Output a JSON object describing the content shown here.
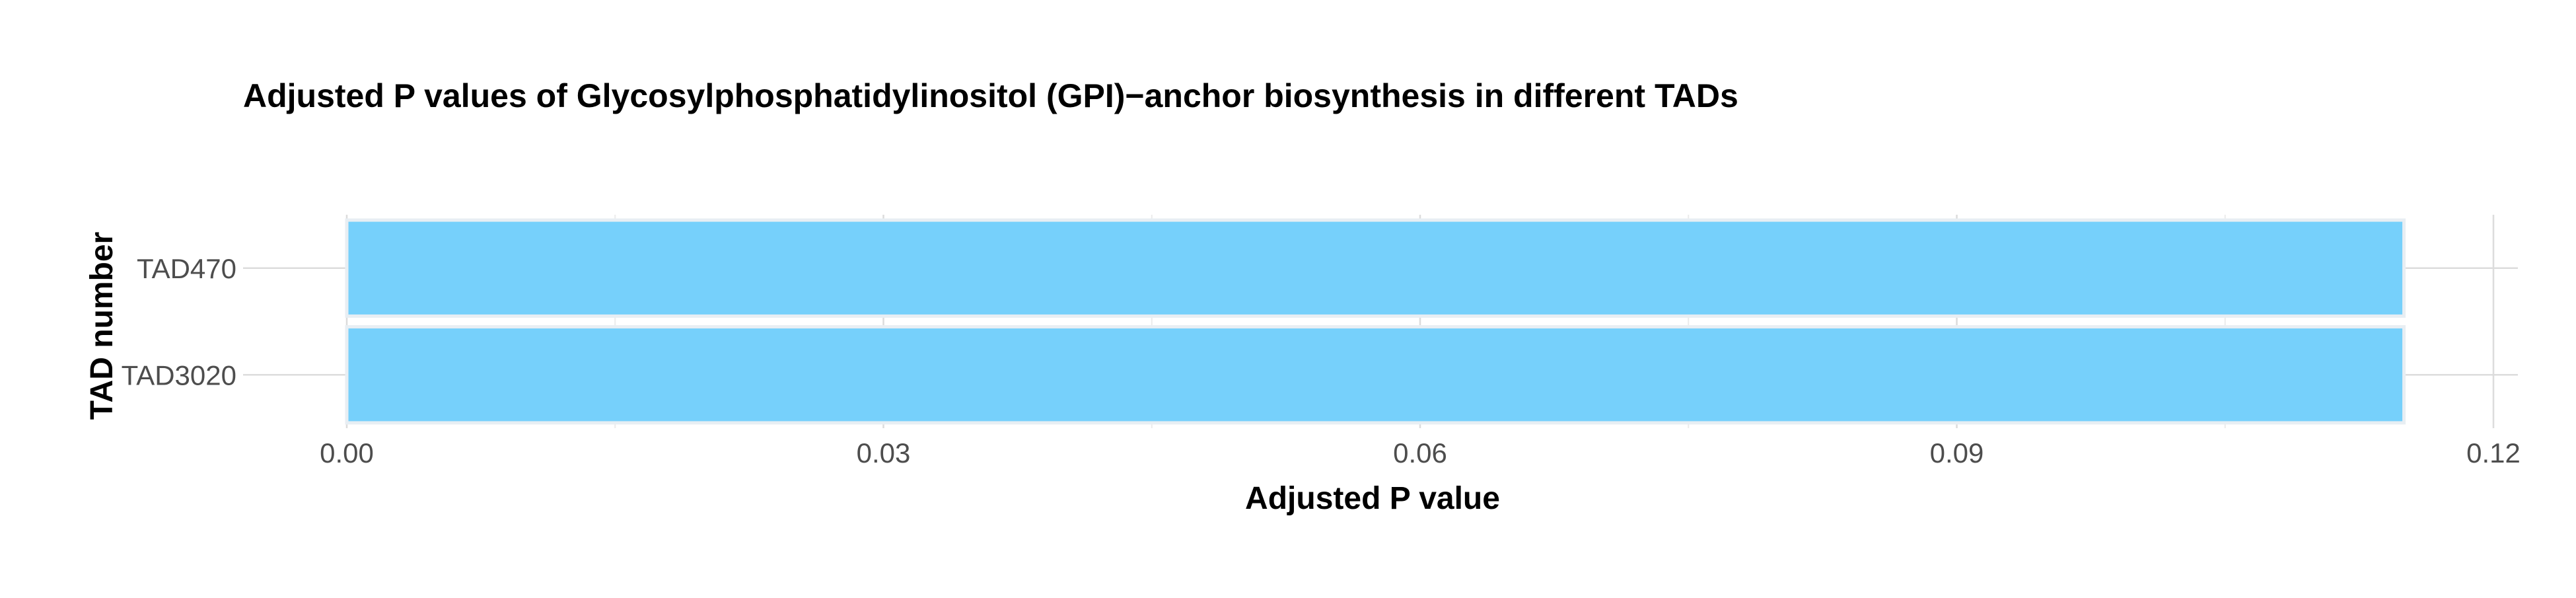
{
  "chart_data": {
    "type": "bar",
    "orientation": "horizontal",
    "title": "Adjusted P values of Glycosylphosphatidylinositol (GPI)−anchor biosynthesis in different TADs",
    "xlabel": "Adjusted P value",
    "ylabel": "TAD number",
    "categories": [
      "TAD470",
      "TAD3020"
    ],
    "values": [
      0.115,
      0.115
    ],
    "xlim": [
      0,
      0.12
    ],
    "xticks": [
      0.0,
      0.03,
      0.06,
      0.09,
      0.12
    ],
    "xtick_labels": [
      "0.00",
      "0.03",
      "0.06",
      "0.09",
      "0.12"
    ],
    "grid": true,
    "legend": "none",
    "colors": {
      "bar_fill": "#76d0fb",
      "bar_edge": "#e8eef3",
      "grid_major": "#dcdcdc",
      "grid_minor": "#ececec",
      "text": "#000000",
      "tick_text": "#4d4d4d"
    }
  }
}
